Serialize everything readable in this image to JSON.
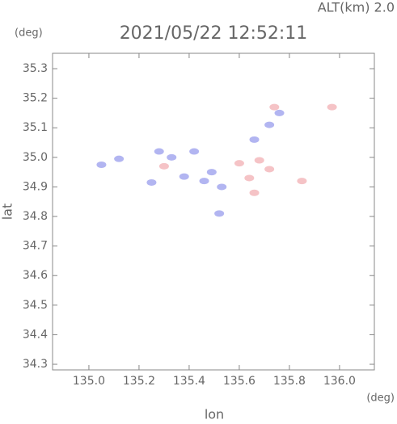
{
  "chart_data": {
    "type": "scatter",
    "title": "2021/05/22 12:52:11",
    "subtitle": "ALT(km) 2.0",
    "y_unit": "(deg)",
    "x_unit": "(deg)",
    "x_label": "lon",
    "y_label": "lat",
    "xlim": [
      134.855,
      136.139
    ],
    "ylim": [
      34.281,
      35.352
    ],
    "xticks": [
      {
        "value": 135,
        "label": "135.0"
      },
      135.2,
      135.4,
      135.6,
      135.8,
      {
        "value": 136,
        "label": "136.0"
      }
    ],
    "yticks": [
      34.3,
      34.4,
      34.5,
      34.6,
      34.7,
      34.8,
      34.9,
      {
        "value": 35,
        "label": "35.0"
      },
      35.1,
      35.2,
      35.3
    ],
    "series": [
      {
        "color": "#9fa3ee",
        "x": [
          135.05,
          135.12,
          135.25,
          135.28,
          135.33,
          135.38,
          135.42,
          135.46,
          135.49,
          135.53,
          135.52,
          135.72,
          135.76,
          135.66
        ],
        "y": [
          34.975,
          34.995,
          34.915,
          35.02,
          35.0,
          34.935,
          35.02,
          34.92,
          34.95,
          34.9,
          34.81,
          35.11,
          35.15,
          35.06
        ]
      },
      {
        "color": "#f3b4b8",
        "x": [
          135.3,
          135.6,
          135.64,
          135.68,
          135.72,
          135.66,
          135.74,
          135.97,
          135.85
        ],
        "y": [
          34.97,
          34.98,
          34.93,
          34.99,
          34.96,
          34.88,
          35.17,
          35.17,
          34.92
        ]
      }
    ]
  }
}
